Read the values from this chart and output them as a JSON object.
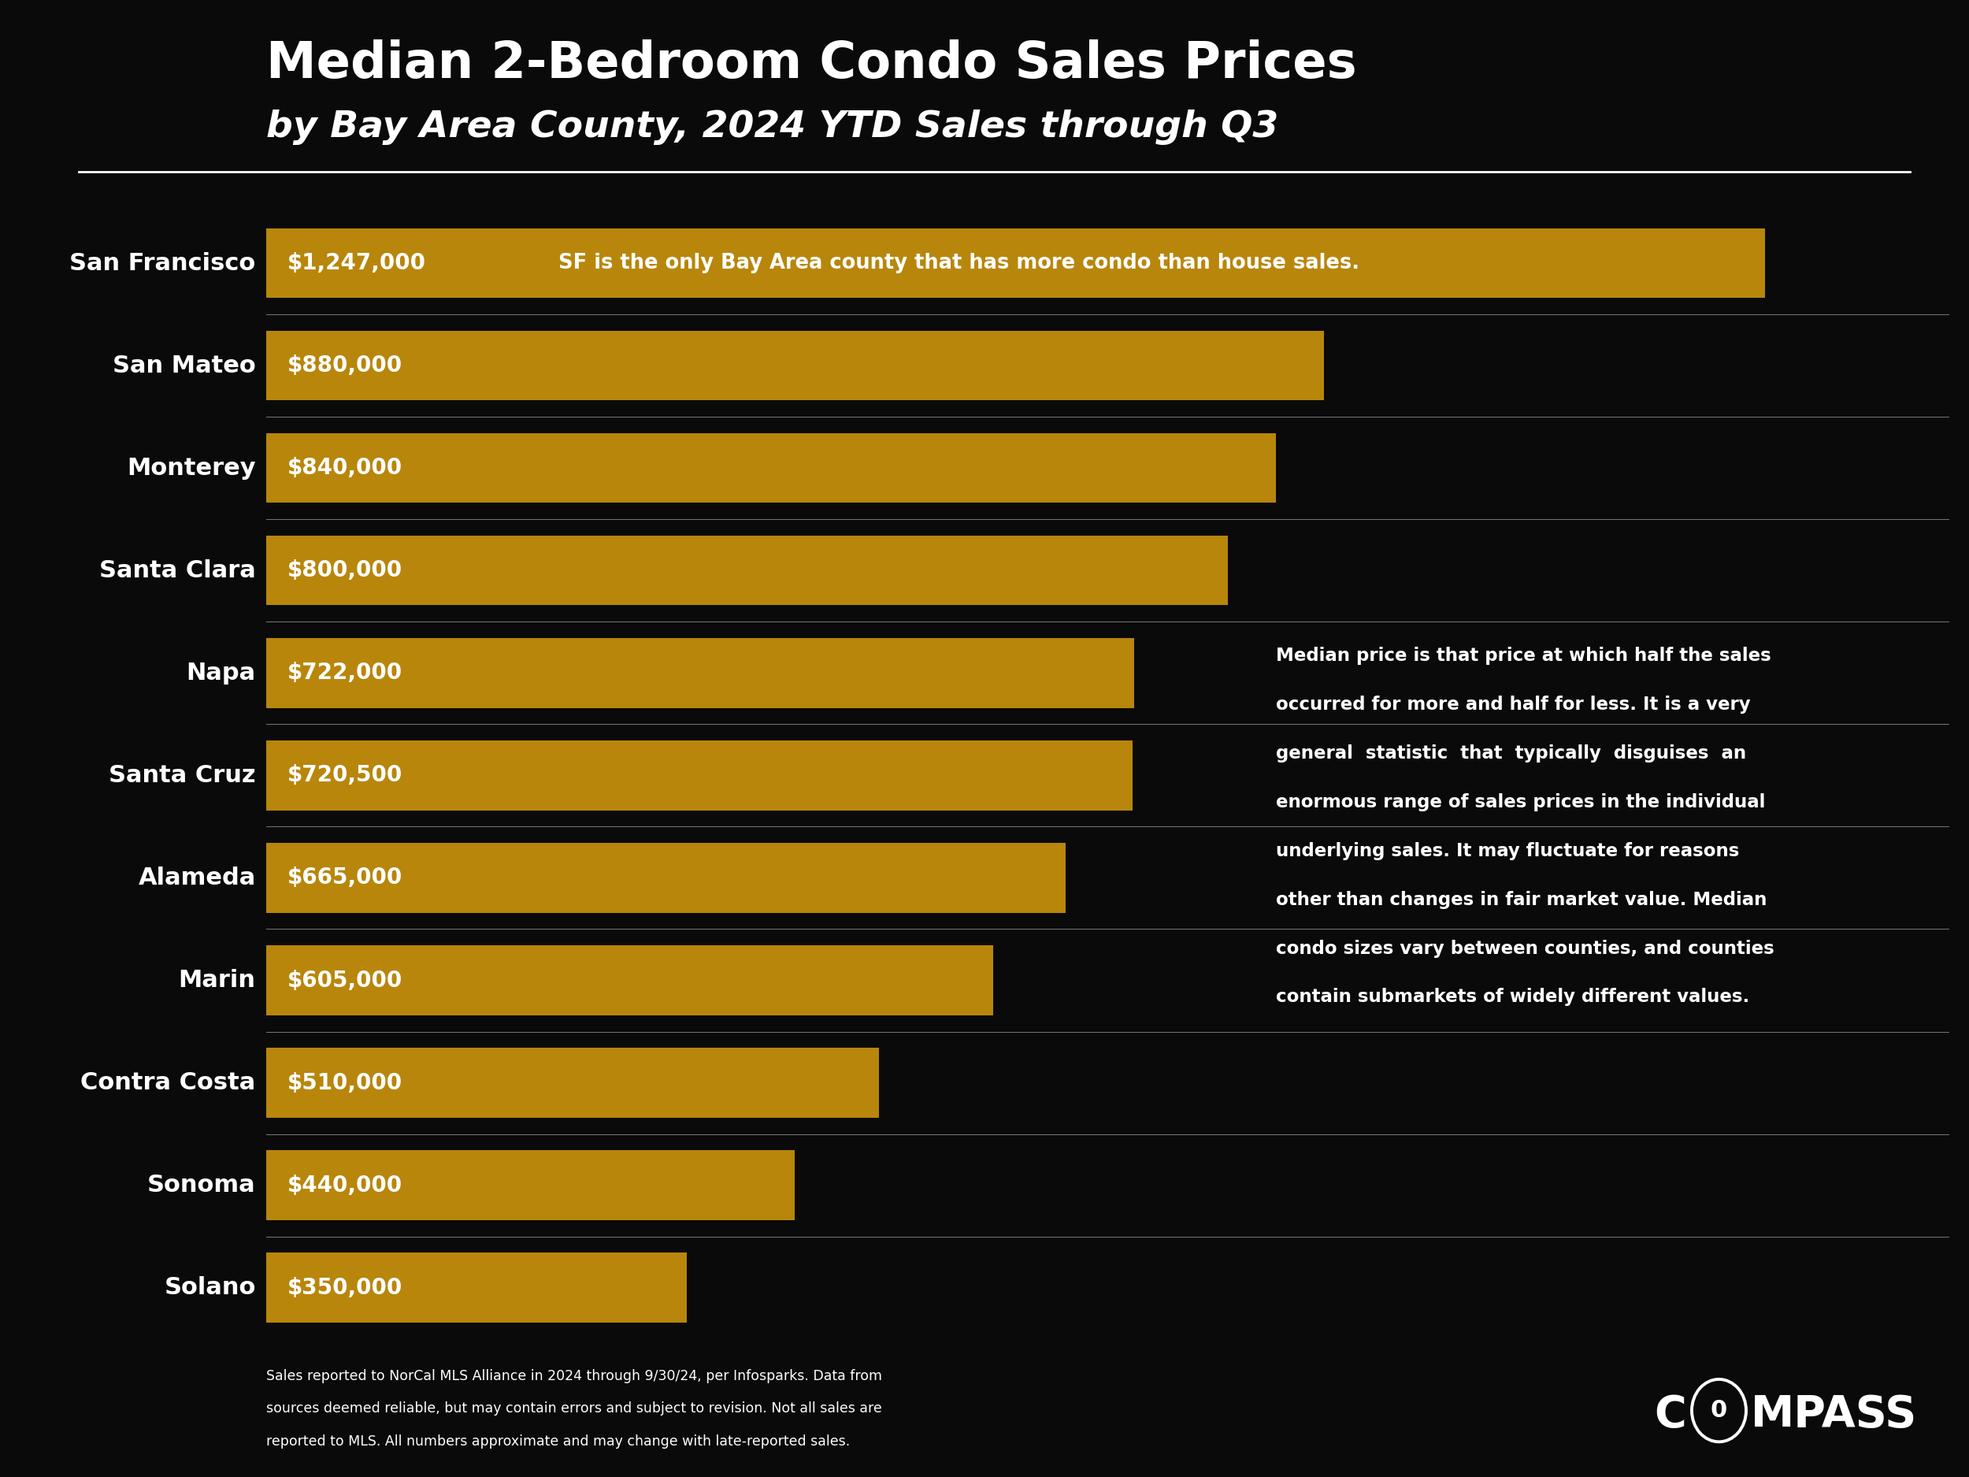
{
  "title_line1": "Median 2-Bedroom Condo Sales Prices",
  "title_line2": "by Bay Area County, 2024 YTD Sales through Q3",
  "counties": [
    "San Francisco",
    "San Mateo",
    "Monterey",
    "Santa Clara",
    "Napa",
    "Santa Cruz",
    "Alameda",
    "Marin",
    "Contra Costa",
    "Sonoma",
    "Solano"
  ],
  "values": [
    1247000,
    880000,
    840000,
    800000,
    722000,
    720500,
    665000,
    605000,
    510000,
    440000,
    350000
  ],
  "labels": [
    "$1,247,000",
    "$880,000",
    "$840,000",
    "$800,000",
    "$722,000",
    "$720,500",
    "$665,000",
    "$605,000",
    "$510,000",
    "$440,000",
    "$350,000"
  ],
  "bar_color": "#B8860B",
  "bg_color": "#0a0a0a",
  "text_color": "#FFFFFF",
  "annotation_sf": "SF is the only Bay Area county that has more condo than house sales.",
  "annotation_median_lines": [
    "Median price is that price at which half the sales",
    "occurred for more and half for less. It is a very",
    "general  statistic  that  typically  disguises  an",
    "enormous range of sales prices in the individual",
    "underlying sales. It may fluctuate for reasons",
    "other than changes in fair market value. Median",
    "condo sizes vary between counties, and counties",
    "contain submarkets of widely different values."
  ],
  "footnote_lines": [
    "Sales reported to NorCal MLS Alliance in 2024 through 9/30/24, per Infosparks. Data from",
    "sources deemed reliable, but may contain errors and subject to revision. Not all sales are",
    "reported to MLS. All numbers approximate and may change with late-reported sales."
  ],
  "xlim_max": 1400000
}
